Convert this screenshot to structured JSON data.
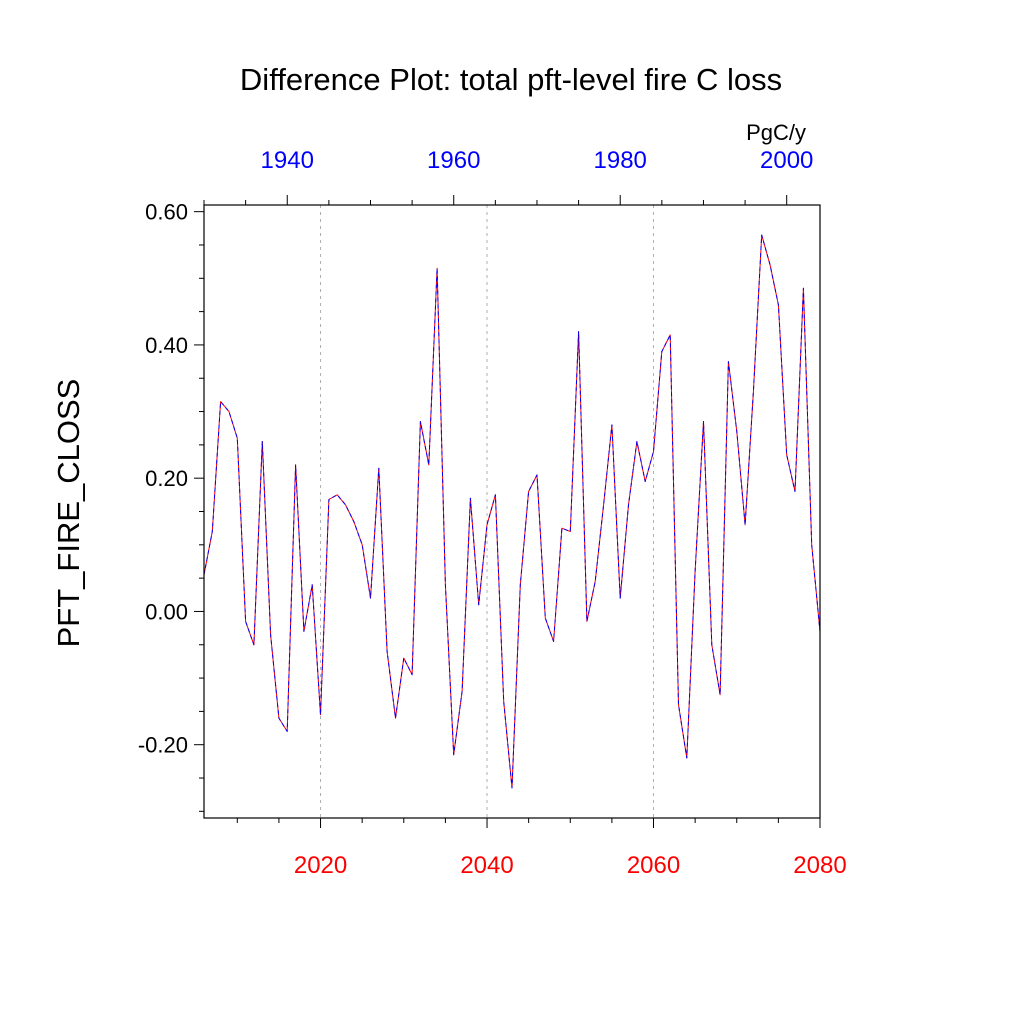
{
  "chart_data": {
    "type": "line",
    "title": "Difference Plot: total pft-level fire C loss",
    "units": "PgC/y",
    "ylabel": "PFT_FIRE_CLOSS",
    "ylim": [
      -0.31,
      0.61
    ],
    "y_ticks": [
      -0.2,
      0.0,
      0.2,
      0.4,
      0.6
    ],
    "y_tick_labels": [
      "-0.20",
      "0.00",
      "0.20",
      "0.40",
      "0.60"
    ],
    "grid": "vertical dashed at bottom-axis major ticks",
    "bottom_axis": {
      "color": "#ff0000",
      "xlim": [
        2006,
        2080
      ],
      "ticks": [
        2020,
        2040,
        2060,
        2080
      ],
      "tick_labels": [
        "2020",
        "2040",
        "2060",
        "2080"
      ]
    },
    "top_axis": {
      "color": "#0000ff",
      "xlim": [
        1930,
        2004
      ],
      "ticks": [
        1940,
        1960,
        1980,
        2000
      ],
      "tick_labels": [
        "1940",
        "1960",
        "1980",
        "2000"
      ]
    },
    "series": [
      {
        "color": "#ff0000",
        "x": [
          2006,
          2007,
          2008,
          2009,
          2010,
          2011,
          2012,
          2013,
          2014,
          2015,
          2016,
          2017,
          2018,
          2019,
          2020,
          2021,
          2022,
          2023,
          2024,
          2025,
          2026,
          2027,
          2028,
          2029,
          2030,
          2031,
          2032,
          2033,
          2034,
          2035,
          2036,
          2037,
          2038,
          2039,
          2040,
          2041,
          2042,
          2043,
          2044,
          2045,
          2046,
          2047,
          2048,
          2049,
          2050,
          2051,
          2052,
          2053,
          2054,
          2055,
          2056,
          2057,
          2058,
          2059,
          2060,
          2061,
          2062,
          2063,
          2064,
          2065,
          2066,
          2067,
          2068,
          2069,
          2070,
          2071,
          2072,
          2073,
          2074,
          2075,
          2076,
          2077,
          2078,
          2079,
          2080
        ],
        "y": [
          0.055,
          0.12,
          0.315,
          0.3,
          0.26,
          -0.015,
          -0.05,
          0.255,
          -0.035,
          -0.16,
          -0.18,
          0.22,
          -0.03,
          0.04,
          -0.155,
          0.168,
          0.175,
          0.16,
          0.135,
          0.1,
          0.02,
          0.215,
          -0.06,
          -0.16,
          -0.07,
          -0.095,
          0.285,
          0.22,
          0.515,
          0.04,
          -0.215,
          -0.12,
          0.17,
          0.01,
          0.13,
          0.175,
          -0.135,
          -0.265,
          0.04,
          0.18,
          0.205,
          -0.01,
          -0.045,
          0.125,
          0.12,
          0.42,
          -0.015,
          0.045,
          0.16,
          0.28,
          0.02,
          0.16,
          0.255,
          0.195,
          0.24,
          0.39,
          0.415,
          -0.14,
          -0.22,
          0.06,
          0.285,
          -0.05,
          -0.125,
          0.375,
          0.27,
          0.13,
          0.33,
          0.565,
          0.52,
          0.46,
          0.235,
          0.18,
          0.485,
          0.1,
          -0.03
        ]
      },
      {
        "color": "#0000ff",
        "x": [
          2006,
          2007,
          2008,
          2009,
          2010,
          2011,
          2012,
          2013,
          2014,
          2015,
          2016,
          2017,
          2018,
          2019,
          2020,
          2021,
          2022,
          2023,
          2024,
          2025,
          2026,
          2027,
          2028,
          2029,
          2030,
          2031,
          2032,
          2033,
          2034,
          2035,
          2036,
          2037,
          2038,
          2039,
          2040,
          2041,
          2042,
          2043,
          2044,
          2045,
          2046,
          2047,
          2048,
          2049,
          2050,
          2051,
          2052,
          2053,
          2054,
          2055,
          2056,
          2057,
          2058,
          2059,
          2060,
          2061,
          2062,
          2063,
          2064,
          2065,
          2066,
          2067,
          2068,
          2069,
          2070,
          2071,
          2072,
          2073,
          2074,
          2075,
          2076,
          2077,
          2078,
          2079,
          2080
        ],
        "y": [
          0.055,
          0.12,
          0.315,
          0.3,
          0.26,
          -0.015,
          -0.05,
          0.255,
          -0.035,
          -0.16,
          -0.18,
          0.22,
          -0.03,
          0.04,
          -0.155,
          0.168,
          0.175,
          0.16,
          0.135,
          0.1,
          0.02,
          0.215,
          -0.06,
          -0.16,
          -0.07,
          -0.095,
          0.285,
          0.22,
          0.515,
          0.04,
          -0.215,
          -0.12,
          0.17,
          0.01,
          0.13,
          0.175,
          -0.135,
          -0.265,
          0.04,
          0.18,
          0.205,
          -0.01,
          -0.045,
          0.125,
          0.12,
          0.42,
          -0.015,
          0.045,
          0.16,
          0.28,
          0.02,
          0.16,
          0.255,
          0.195,
          0.24,
          0.39,
          0.415,
          -0.14,
          -0.22,
          0.06,
          0.285,
          -0.05,
          -0.125,
          0.375,
          0.27,
          0.13,
          0.33,
          0.565,
          0.52,
          0.46,
          0.235,
          0.18,
          0.485,
          0.1,
          -0.03
        ]
      }
    ]
  }
}
